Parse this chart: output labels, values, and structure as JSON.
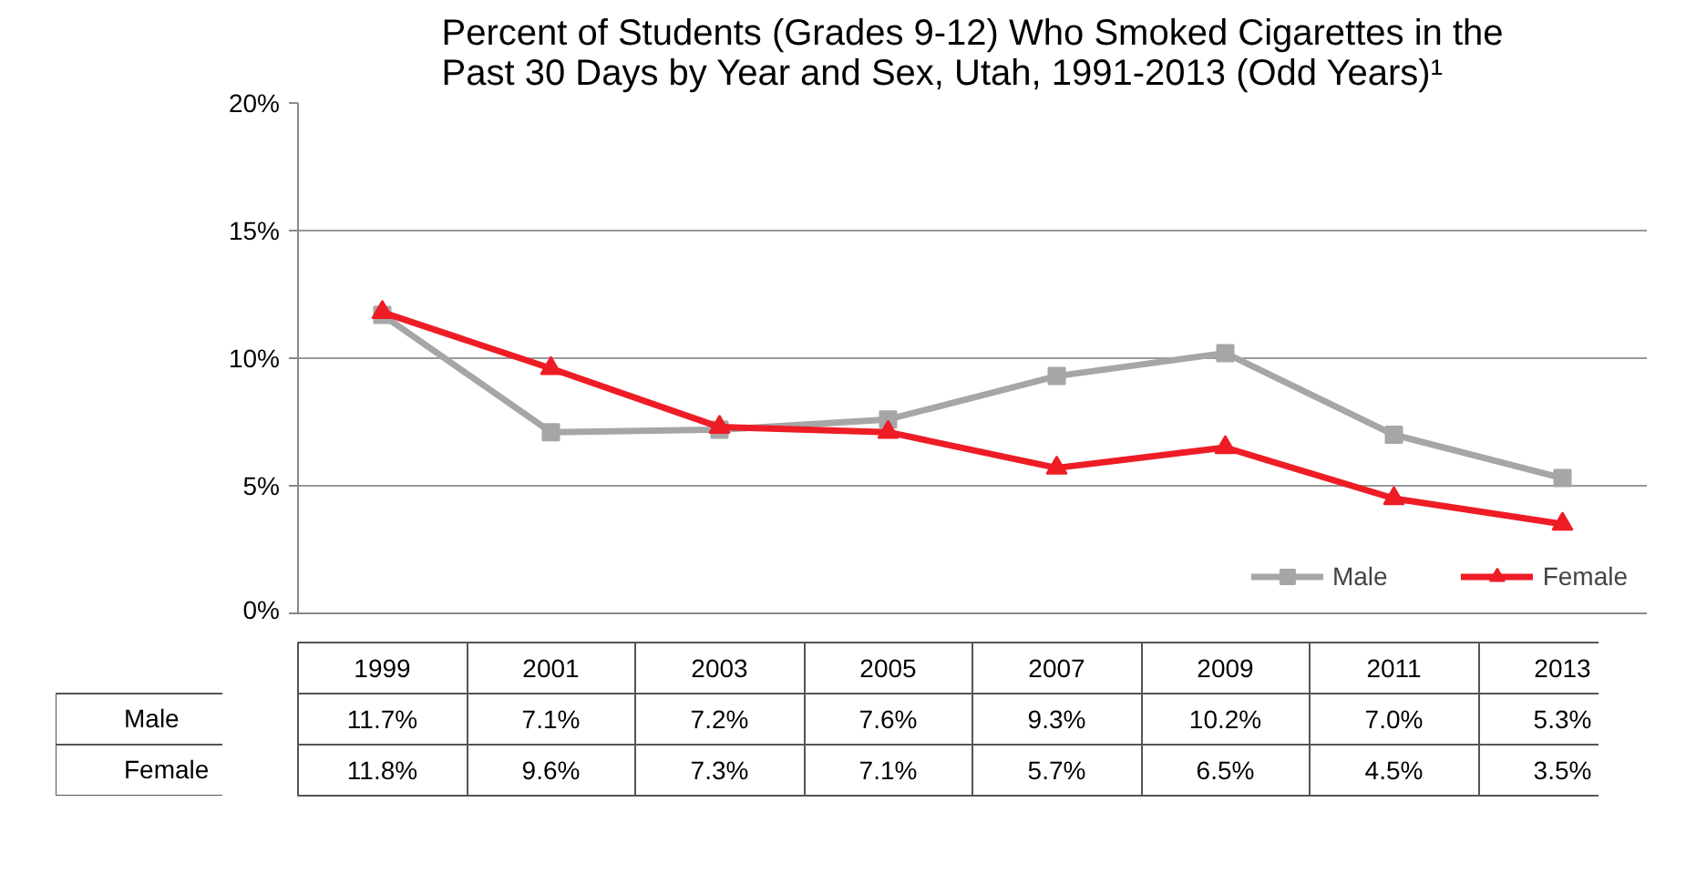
{
  "chart_data": {
    "type": "line",
    "title": "Percent of Students (Grades 9-12) Who Smoked Cigarettes in the\nPast 30 Days by Year and Sex, Utah, 1991-2013 (Odd Years)¹",
    "categories": [
      "1999",
      "2001",
      "2003",
      "2005",
      "2007",
      "2009",
      "2011",
      "2013"
    ],
    "series": [
      {
        "name": "Male",
        "color": "#a6a6a6",
        "marker": "square",
        "values": [
          11.7,
          7.1,
          7.2,
          7.6,
          9.3,
          10.2,
          7.0,
          5.3
        ],
        "value_labels": [
          "11.7%",
          "7.1%",
          "7.2%",
          "7.6%",
          "9.3%",
          "10.2%",
          "7.0%",
          "5.3%"
        ]
      },
      {
        "name": "Female",
        "color": "#ee1c25",
        "marker": "triangle",
        "values": [
          11.8,
          9.6,
          7.3,
          7.1,
          5.7,
          6.5,
          4.5,
          3.5
        ],
        "value_labels": [
          "11.8%",
          "9.6%",
          "7.3%",
          "7.1%",
          "5.7%",
          "6.5%",
          "4.5%",
          "3.5%"
        ]
      }
    ],
    "ylim": [
      0,
      20
    ],
    "yticks": [
      {
        "value": 0,
        "label": "0%"
      },
      {
        "value": 5,
        "label": "5%"
      },
      {
        "value": 10,
        "label": "10%"
      },
      {
        "value": 15,
        "label": "15%"
      },
      {
        "value": 20,
        "label": "20%"
      }
    ],
    "grid": "y",
    "legend": "bottom right",
    "line_style": "solid"
  }
}
